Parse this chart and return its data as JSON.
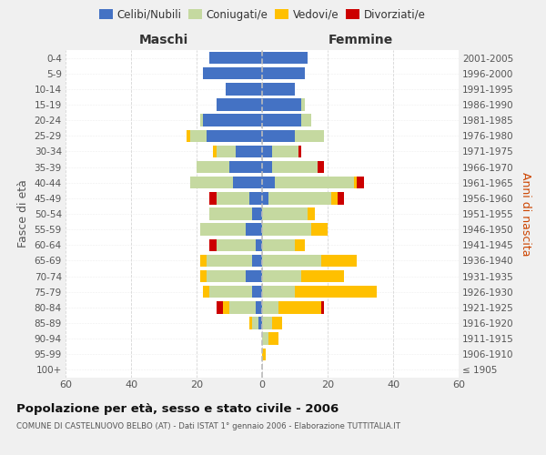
{
  "age_groups": [
    "100+",
    "95-99",
    "90-94",
    "85-89",
    "80-84",
    "75-79",
    "70-74",
    "65-69",
    "60-64",
    "55-59",
    "50-54",
    "45-49",
    "40-44",
    "35-39",
    "30-34",
    "25-29",
    "20-24",
    "15-19",
    "10-14",
    "5-9",
    "0-4"
  ],
  "birth_years": [
    "≤ 1905",
    "1906-1910",
    "1911-1915",
    "1916-1920",
    "1921-1925",
    "1926-1930",
    "1931-1935",
    "1936-1940",
    "1941-1945",
    "1946-1950",
    "1951-1955",
    "1956-1960",
    "1961-1965",
    "1966-1970",
    "1971-1975",
    "1976-1980",
    "1981-1985",
    "1986-1990",
    "1991-1995",
    "1996-2000",
    "2001-2005"
  ],
  "maschi": {
    "celibi": [
      0,
      0,
      0,
      1,
      2,
      3,
      5,
      3,
      2,
      5,
      3,
      4,
      9,
      10,
      8,
      17,
      18,
      14,
      11,
      18,
      16
    ],
    "coniugati": [
      0,
      0,
      0,
      2,
      8,
      13,
      12,
      14,
      12,
      14,
      13,
      10,
      13,
      10,
      6,
      5,
      1,
      0,
      0,
      0,
      0
    ],
    "vedovi": [
      0,
      0,
      0,
      1,
      2,
      2,
      2,
      2,
      0,
      0,
      0,
      0,
      0,
      0,
      1,
      1,
      0,
      0,
      0,
      0,
      0
    ],
    "divorziati": [
      0,
      0,
      0,
      0,
      2,
      0,
      0,
      0,
      2,
      0,
      0,
      2,
      0,
      0,
      0,
      0,
      0,
      0,
      0,
      0,
      0
    ]
  },
  "femmine": {
    "nubili": [
      0,
      0,
      0,
      0,
      0,
      0,
      0,
      0,
      0,
      0,
      0,
      2,
      4,
      3,
      3,
      10,
      12,
      12,
      10,
      13,
      14
    ],
    "coniugate": [
      0,
      0,
      2,
      3,
      5,
      10,
      12,
      18,
      10,
      15,
      14,
      19,
      24,
      14,
      8,
      9,
      3,
      1,
      0,
      0,
      0
    ],
    "vedove": [
      0,
      1,
      3,
      3,
      13,
      25,
      13,
      11,
      3,
      5,
      2,
      2,
      1,
      0,
      0,
      0,
      0,
      0,
      0,
      0,
      0
    ],
    "divorziate": [
      0,
      0,
      0,
      0,
      1,
      0,
      0,
      0,
      0,
      0,
      0,
      2,
      2,
      2,
      1,
      0,
      0,
      0,
      0,
      0,
      0
    ]
  },
  "colors": {
    "celibi": "#4472c4",
    "coniugati": "#c5d9a0",
    "vedovi": "#ffc000",
    "divorziati": "#cc0000"
  },
  "xlim": 60,
  "title": "Popolazione per età, sesso e stato civile - 2006",
  "subtitle": "COMUNE DI CASTELNUOVO BELBO (AT) - Dati ISTAT 1° gennaio 2006 - Elaborazione TUTTITALIA.IT",
  "legend_labels": [
    "Celibi/Nubili",
    "Coniugati/e",
    "Vedovi/e",
    "Divorziati/e"
  ],
  "ylabel_left": "Fasce di età",
  "ylabel_right": "Anni di nascita",
  "header_maschi": "Maschi",
  "header_femmine": "Femmine",
  "bg_color": "#f0f0f0",
  "plot_bg_color": "#ffffff"
}
